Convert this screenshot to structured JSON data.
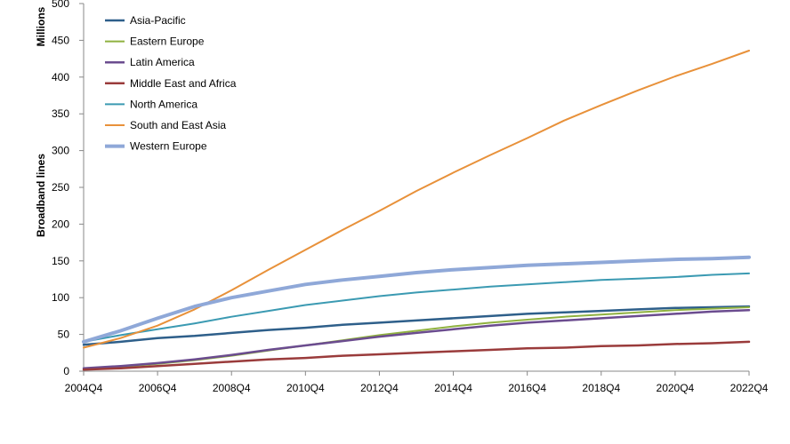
{
  "chart_data": {
    "type": "line",
    "ylabel": "Broadband lines",
    "yunit": "Millions",
    "ylim": [
      0,
      500
    ],
    "yticks": [
      0,
      50,
      100,
      150,
      200,
      250,
      300,
      350,
      400,
      450,
      500
    ],
    "xlim": [
      "2004Q4",
      "2022Q4"
    ],
    "xticks": [
      "2004Q4",
      "2006Q4",
      "2008Q4",
      "2010Q4",
      "2012Q4",
      "2014Q4",
      "2016Q4",
      "2018Q4",
      "2020Q4",
      "2022Q4"
    ],
    "grid": false,
    "legend_position": "top-left",
    "x": [
      "2004Q4",
      "2005Q4",
      "2006Q4",
      "2007Q4",
      "2008Q4",
      "2009Q4",
      "2010Q4",
      "2011Q4",
      "2012Q4",
      "2013Q4",
      "2014Q4",
      "2015Q4",
      "2016Q4",
      "2017Q4",
      "2018Q4",
      "2019Q4",
      "2020Q4",
      "2021Q4",
      "2022Q4"
    ],
    "series": [
      {
        "name": "Asia-Pacific",
        "color": "#2e5f8a",
        "width": 2.5,
        "values": [
          36,
          40,
          45,
          48,
          52,
          56,
          59,
          63,
          66,
          69,
          72,
          75,
          78,
          80,
          82,
          84,
          86,
          87,
          88
        ]
      },
      {
        "name": "Eastern Europe",
        "color": "#8fb13f",
        "width": 2,
        "values": [
          3,
          6,
          10,
          15,
          21,
          28,
          35,
          42,
          49,
          55,
          61,
          66,
          70,
          74,
          77,
          80,
          83,
          85,
          87
        ]
      },
      {
        "name": "Latin America",
        "color": "#6b4c8f",
        "width": 2.5,
        "values": [
          4,
          7,
          11,
          16,
          22,
          29,
          35,
          41,
          47,
          52,
          57,
          62,
          66,
          69,
          72,
          75,
          78,
          81,
          83
        ]
      },
      {
        "name": "Middle East and Africa",
        "color": "#9a3b3b",
        "width": 2.5,
        "values": [
          2,
          4,
          7,
          10,
          13,
          16,
          18,
          21,
          23,
          25,
          27,
          29,
          31,
          32,
          34,
          35,
          37,
          38,
          40
        ]
      },
      {
        "name": "North America",
        "color": "#3b9ab2",
        "width": 2,
        "values": [
          40,
          49,
          57,
          65,
          74,
          82,
          90,
          96,
          102,
          107,
          111,
          115,
          118,
          121,
          124,
          126,
          128,
          131,
          133
        ]
      },
      {
        "name": "South and East Asia",
        "color": "#e8913a",
        "width": 2,
        "values": [
          32,
          45,
          62,
          84,
          110,
          138,
          165,
          192,
          218,
          245,
          270,
          294,
          317,
          341,
          362,
          382,
          401,
          418,
          436
        ]
      },
      {
        "name": "Western Europe",
        "color": "#8fa8d8",
        "width": 4,
        "values": [
          40,
          55,
          72,
          88,
          100,
          109,
          118,
          124,
          129,
          134,
          138,
          141,
          144,
          146,
          148,
          150,
          152,
          153,
          155
        ]
      }
    ]
  }
}
